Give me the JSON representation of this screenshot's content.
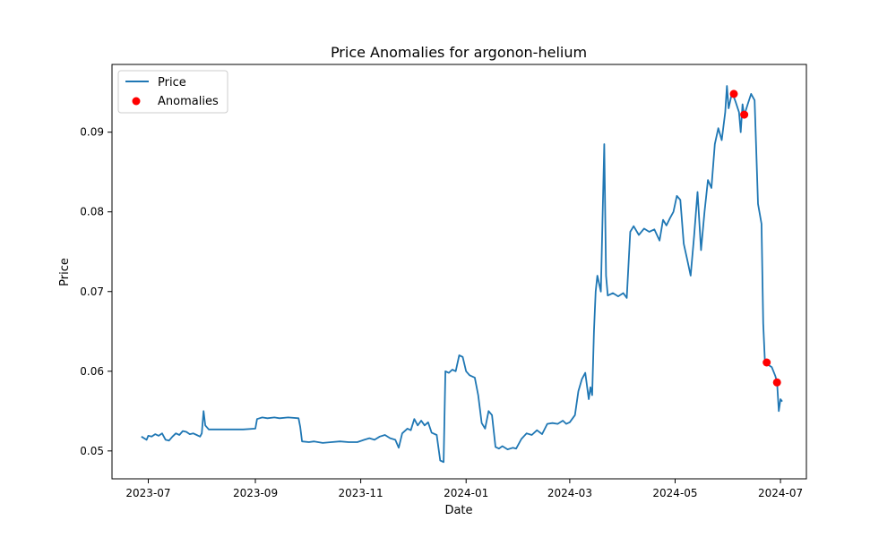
{
  "chart_data": {
    "type": "line",
    "title": "Price Anomalies for argonon-helium",
    "xlabel": "Date",
    "ylabel": "Price",
    "xlim": [
      "2023-06-10",
      "2024-07-16"
    ],
    "ylim": [
      0.0465,
      0.0985
    ],
    "x_ticks": [
      "2023-07",
      "2023-09",
      "2023-11",
      "2024-01",
      "2024-03",
      "2024-05",
      "2024-07"
    ],
    "x_tick_dates": [
      "2023-07-01",
      "2023-09-01",
      "2023-11-01",
      "2024-01-01",
      "2024-03-01",
      "2024-05-01",
      "2024-07-01"
    ],
    "y_ticks": [
      0.05,
      0.06,
      0.07,
      0.08,
      0.09
    ],
    "grid": false,
    "legend": {
      "position": "upper-left",
      "entries": [
        "Price",
        "Anomalies"
      ]
    },
    "colors": {
      "price": "#1f77b4",
      "anomalies": "#ff0000",
      "axes": "#000000"
    },
    "series": [
      {
        "name": "Price",
        "marker": "line",
        "points": [
          [
            "2023-06-27",
            0.0518
          ],
          [
            "2023-06-30",
            0.0514
          ],
          [
            "2023-07-01",
            0.0519
          ],
          [
            "2023-07-03",
            0.0518
          ],
          [
            "2023-07-05",
            0.0521
          ],
          [
            "2023-07-07",
            0.0519
          ],
          [
            "2023-07-09",
            0.0522
          ],
          [
            "2023-07-11",
            0.0514
          ],
          [
            "2023-07-13",
            0.0513
          ],
          [
            "2023-07-15",
            0.0518
          ],
          [
            "2023-07-17",
            0.0522
          ],
          [
            "2023-07-19",
            0.052
          ],
          [
            "2023-07-21",
            0.0525
          ],
          [
            "2023-07-23",
            0.0524
          ],
          [
            "2023-07-25",
            0.0521
          ],
          [
            "2023-07-27",
            0.0522
          ],
          [
            "2023-07-29",
            0.052
          ],
          [
            "2023-07-31",
            0.0518
          ],
          [
            "2023-08-01",
            0.0522
          ],
          [
            "2023-08-02",
            0.055
          ],
          [
            "2023-08-03",
            0.0532
          ],
          [
            "2023-08-05",
            0.0527
          ],
          [
            "2023-08-08",
            0.0527
          ],
          [
            "2023-08-15",
            0.0527
          ],
          [
            "2023-08-25",
            0.0527
          ],
          [
            "2023-09-01",
            0.0528
          ],
          [
            "2023-09-02",
            0.054
          ],
          [
            "2023-09-05",
            0.0542
          ],
          [
            "2023-09-08",
            0.0541
          ],
          [
            "2023-09-12",
            0.0542
          ],
          [
            "2023-09-15",
            0.0541
          ],
          [
            "2023-09-20",
            0.0542
          ],
          [
            "2023-09-26",
            0.0541
          ],
          [
            "2023-09-27",
            0.053
          ],
          [
            "2023-09-28",
            0.0512
          ],
          [
            "2023-10-02",
            0.0511
          ],
          [
            "2023-10-05",
            0.0512
          ],
          [
            "2023-10-10",
            0.051
          ],
          [
            "2023-10-15",
            0.0511
          ],
          [
            "2023-10-20",
            0.0512
          ],
          [
            "2023-10-25",
            0.0511
          ],
          [
            "2023-10-30",
            0.0511
          ],
          [
            "2023-11-03",
            0.0514
          ],
          [
            "2023-11-06",
            0.0516
          ],
          [
            "2023-11-09",
            0.0514
          ],
          [
            "2023-11-12",
            0.0518
          ],
          [
            "2023-11-15",
            0.052
          ],
          [
            "2023-11-18",
            0.0516
          ],
          [
            "2023-11-21",
            0.0514
          ],
          [
            "2023-11-23",
            0.0504
          ],
          [
            "2023-11-25",
            0.0522
          ],
          [
            "2023-11-28",
            0.0528
          ],
          [
            "2023-11-30",
            0.0526
          ],
          [
            "2023-12-02",
            0.054
          ],
          [
            "2023-12-04",
            0.0532
          ],
          [
            "2023-12-06",
            0.0538
          ],
          [
            "2023-12-08",
            0.0532
          ],
          [
            "2023-12-10",
            0.0536
          ],
          [
            "2023-12-12",
            0.0523
          ],
          [
            "2023-12-15",
            0.052
          ],
          [
            "2023-12-17",
            0.0488
          ],
          [
            "2023-12-19",
            0.0486
          ],
          [
            "2023-12-20",
            0.06
          ],
          [
            "2023-12-22",
            0.0598
          ],
          [
            "2023-12-24",
            0.0602
          ],
          [
            "2023-12-26",
            0.06
          ],
          [
            "2023-12-28",
            0.062
          ],
          [
            "2023-12-30",
            0.0618
          ],
          [
            "2024-01-01",
            0.06
          ],
          [
            "2024-01-03",
            0.0595
          ],
          [
            "2024-01-06",
            0.0592
          ],
          [
            "2024-01-08",
            0.057
          ],
          [
            "2024-01-10",
            0.0535
          ],
          [
            "2024-01-12",
            0.0528
          ],
          [
            "2024-01-14",
            0.055
          ],
          [
            "2024-01-16",
            0.0545
          ],
          [
            "2024-01-18",
            0.0505
          ],
          [
            "2024-01-20",
            0.0503
          ],
          [
            "2024-01-22",
            0.0506
          ],
          [
            "2024-01-25",
            0.0502
          ],
          [
            "2024-01-28",
            0.0504
          ],
          [
            "2024-01-30",
            0.0503
          ],
          [
            "2024-02-02",
            0.0515
          ],
          [
            "2024-02-05",
            0.0522
          ],
          [
            "2024-02-08",
            0.052
          ],
          [
            "2024-02-11",
            0.0526
          ],
          [
            "2024-02-14",
            0.0521
          ],
          [
            "2024-02-17",
            0.0534
          ],
          [
            "2024-02-20",
            0.0535
          ],
          [
            "2024-02-23",
            0.0534
          ],
          [
            "2024-02-26",
            0.0538
          ],
          [
            "2024-02-28",
            0.0534
          ],
          [
            "2024-03-01",
            0.0536
          ],
          [
            "2024-03-04",
            0.0545
          ],
          [
            "2024-03-06",
            0.0575
          ],
          [
            "2024-03-08",
            0.059
          ],
          [
            "2024-03-10",
            0.0598
          ],
          [
            "2024-03-12",
            0.0565
          ],
          [
            "2024-03-13",
            0.058
          ],
          [
            "2024-03-14",
            0.057
          ],
          [
            "2024-03-15",
            0.065
          ],
          [
            "2024-03-16",
            0.07
          ],
          [
            "2024-03-17",
            0.072
          ],
          [
            "2024-03-19",
            0.07
          ],
          [
            "2024-03-21",
            0.0885
          ],
          [
            "2024-03-22",
            0.072
          ],
          [
            "2024-03-23",
            0.0695
          ],
          [
            "2024-03-26",
            0.0698
          ],
          [
            "2024-03-29",
            0.0694
          ],
          [
            "2024-04-01",
            0.0698
          ],
          [
            "2024-04-03",
            0.0692
          ],
          [
            "2024-04-05",
            0.0775
          ],
          [
            "2024-04-07",
            0.0782
          ],
          [
            "2024-04-10",
            0.0771
          ],
          [
            "2024-04-13",
            0.0779
          ],
          [
            "2024-04-16",
            0.0775
          ],
          [
            "2024-04-19",
            0.0778
          ],
          [
            "2024-04-22",
            0.0764
          ],
          [
            "2024-04-24",
            0.079
          ],
          [
            "2024-04-26",
            0.0783
          ],
          [
            "2024-04-28",
            0.0792
          ],
          [
            "2024-04-30",
            0.08
          ],
          [
            "2024-05-01",
            0.081
          ],
          [
            "2024-05-02",
            0.082
          ],
          [
            "2024-05-04",
            0.0815
          ],
          [
            "2024-05-06",
            0.076
          ],
          [
            "2024-05-08",
            0.074
          ],
          [
            "2024-05-10",
            0.072
          ],
          [
            "2024-05-12",
            0.077
          ],
          [
            "2024-05-14",
            0.0825
          ],
          [
            "2024-05-16",
            0.0752
          ],
          [
            "2024-05-18",
            0.08
          ],
          [
            "2024-05-20",
            0.084
          ],
          [
            "2024-05-22",
            0.083
          ],
          [
            "2024-05-24",
            0.0885
          ],
          [
            "2024-05-26",
            0.0905
          ],
          [
            "2024-05-28",
            0.089
          ],
          [
            "2024-05-30",
            0.0925
          ],
          [
            "2024-05-31",
            0.0958
          ],
          [
            "2024-06-01",
            0.093
          ],
          [
            "2024-06-03",
            0.095
          ],
          [
            "2024-06-05",
            0.0938
          ],
          [
            "2024-06-07",
            0.0925
          ],
          [
            "2024-06-08",
            0.09
          ],
          [
            "2024-06-09",
            0.0935
          ],
          [
            "2024-06-10",
            0.0921
          ],
          [
            "2024-06-12",
            0.0935
          ],
          [
            "2024-06-14",
            0.0948
          ],
          [
            "2024-06-16",
            0.094
          ],
          [
            "2024-06-18",
            0.081
          ],
          [
            "2024-06-20",
            0.0785
          ],
          [
            "2024-06-21",
            0.066
          ],
          [
            "2024-06-22",
            0.0612
          ],
          [
            "2024-06-24",
            0.0608
          ],
          [
            "2024-06-26",
            0.0605
          ],
          [
            "2024-06-28",
            0.0594
          ],
          [
            "2024-06-29",
            0.0587
          ],
          [
            "2024-06-30",
            0.055
          ],
          [
            "2024-07-01",
            0.0565
          ],
          [
            "2024-07-02",
            0.0562
          ]
        ]
      },
      {
        "name": "Anomalies",
        "marker": "scatter",
        "points": [
          [
            "2024-06-04",
            0.0948
          ],
          [
            "2024-06-10",
            0.0922
          ],
          [
            "2024-06-23",
            0.0611
          ],
          [
            "2024-06-29",
            0.0586
          ]
        ]
      }
    ]
  }
}
